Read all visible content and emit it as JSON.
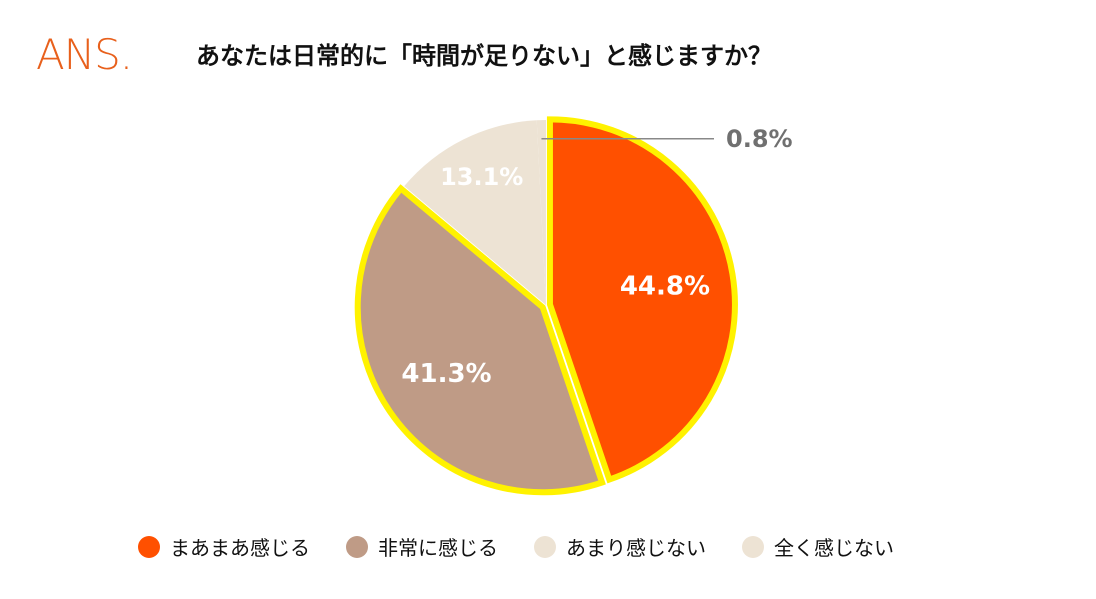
{
  "brand": {
    "logo_text": "ANS.",
    "logo_color": "#E8601C"
  },
  "chart_data": {
    "type": "pie",
    "title": "あなたは日常的に「時間が足りない」と感じますか？",
    "start_angle_deg": 0,
    "direction": "clockwise",
    "legend_position": "bottom",
    "highlight_color": "#FFF200",
    "slices": [
      {
        "label": "まあまあ感じる",
        "value": 44.8,
        "value_label": "44.8%",
        "color": "#FF5000",
        "label_color": "#FFFFFF",
        "highlighted": true
      },
      {
        "label": "非常に感じる",
        "value": 41.3,
        "value_label": "41.3%",
        "color": "#BF9B86",
        "label_color": "#FFFFFF",
        "highlighted": true
      },
      {
        "label": "あまり感じない",
        "value": 13.1,
        "value_label": "13.1%",
        "color": "#EDE3D4",
        "label_color": "#FFFFFF",
        "highlighted": false
      },
      {
        "label": "全く感じない",
        "value": 0.8,
        "value_label": "0.8%",
        "color": "#EDE3D4",
        "label_color": "#707070",
        "highlighted": false
      }
    ]
  }
}
